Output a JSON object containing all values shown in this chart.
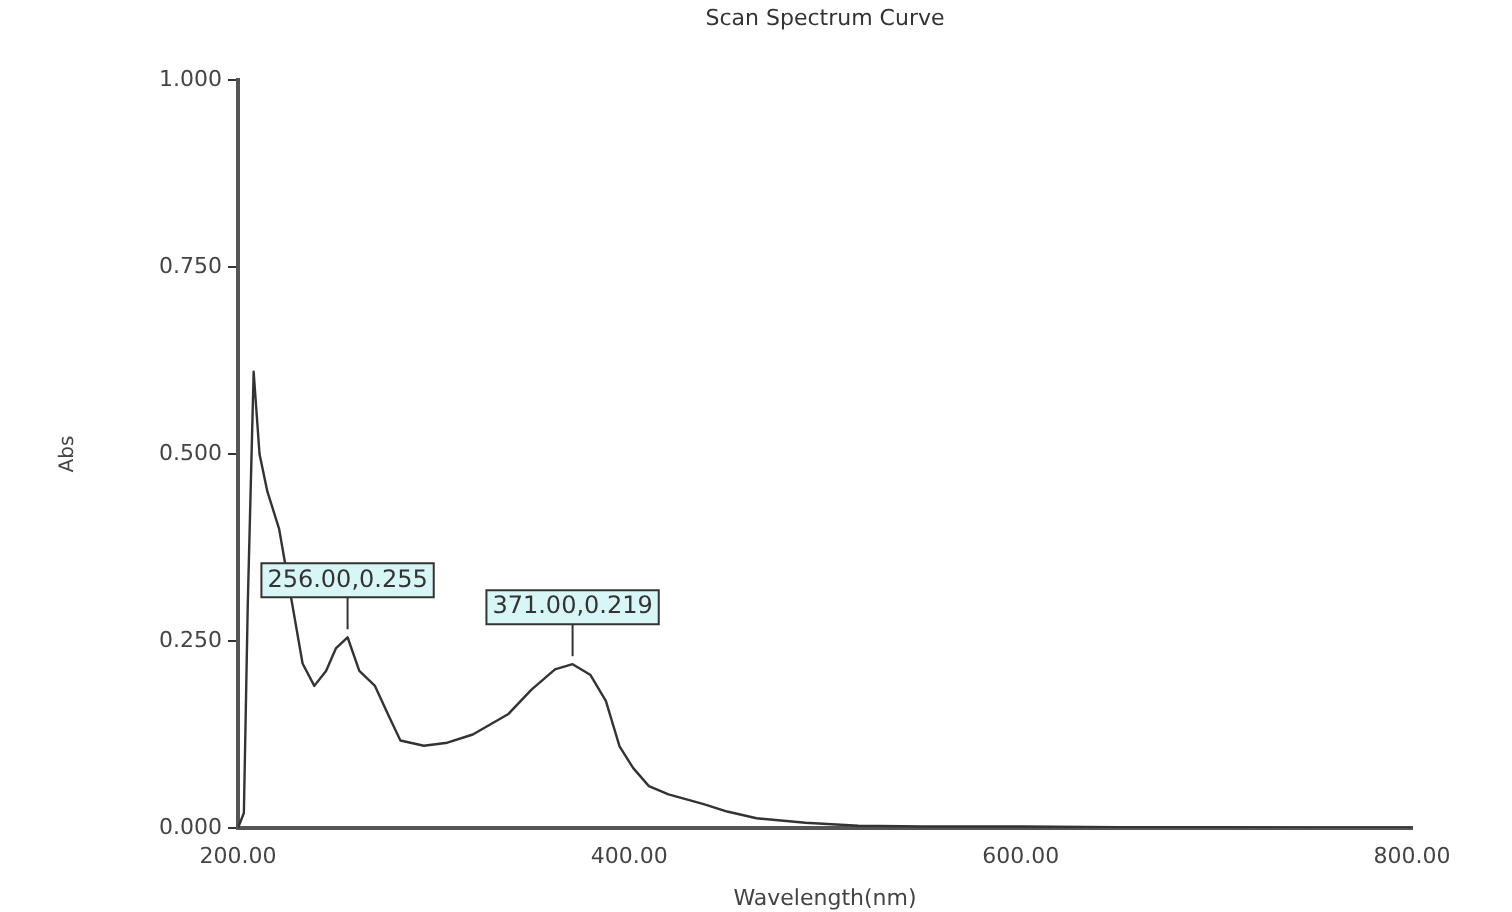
{
  "chart_data": {
    "type": "line",
    "title": "Scan Spectrum Curve",
    "xlabel": "Wavelength(nm)",
    "ylabel": "Abs",
    "x": [
      200,
      203,
      205,
      208,
      211,
      215,
      221,
      227,
      233,
      239,
      245,
      250,
      256,
      262,
      270,
      277,
      283,
      295,
      307,
      320,
      338,
      350,
      362,
      371,
      380,
      388,
      395,
      402,
      410,
      420,
      438,
      450,
      465,
      490,
      517,
      550,
      600,
      650,
      700,
      750,
      800
    ],
    "series": [
      {
        "color": "#333333",
        "values": [
          0,
          0.02,
          0.3,
          0.61,
          0.5,
          0.45,
          0.4,
          0.31,
          0.22,
          0.19,
          0.21,
          0.24,
          0.255,
          0.21,
          0.19,
          0.15,
          0.117,
          0.11,
          0.114,
          0.125,
          0.152,
          0.185,
          0.212,
          0.219,
          0.205,
          0.17,
          0.109,
          0.08,
          0.056,
          0.045,
          0.032,
          0.022,
          0.013,
          0.007,
          0.003,
          0.002,
          0.002,
          0.001,
          0.001,
          0,
          0
        ]
      }
    ],
    "xlim": [
      200,
      800
    ],
    "ylim": [
      0,
      1
    ],
    "xticks": [
      {
        "value": 200,
        "label": "200.00"
      },
      {
        "value": 400,
        "label": "400.00"
      },
      {
        "value": 600,
        "label": "600.00"
      },
      {
        "value": 800,
        "label": "800.00"
      }
    ],
    "yticks": [
      {
        "value": 0,
        "label": "0.000"
      },
      {
        "value": 0.25,
        "label": "0.250"
      },
      {
        "value": 0.5,
        "label": "0.500"
      },
      {
        "value": 0.75,
        "label": "0.750"
      },
      {
        "value": 1,
        "label": "1.000"
      }
    ],
    "annotations": [
      {
        "text": "256.00,0.255",
        "x": 256,
        "y": 0.255
      },
      {
        "text": "371.00,0.219",
        "x": 371,
        "y": 0.219
      }
    ],
    "grid": false,
    "legend": false,
    "marker": "none",
    "line_style": "solid"
  }
}
